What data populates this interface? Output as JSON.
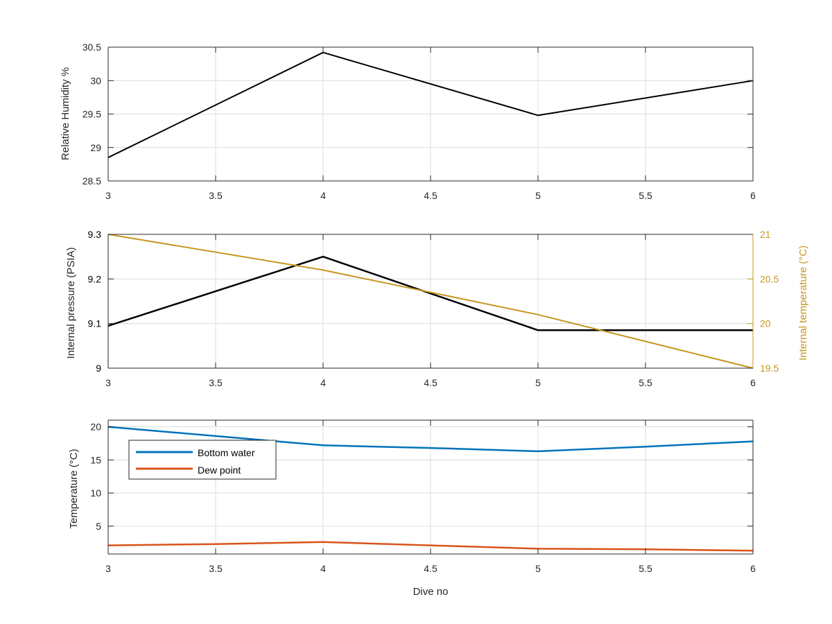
{
  "colors": {
    "axis": "#262626",
    "grid": "#dcdcdc",
    "black_series": "#000000",
    "orange_axis": "#C8961E",
    "blue_series": "#0072BD",
    "red_series": "#D95319"
  },
  "chart_data": [
    {
      "type": "line",
      "xlabel": "",
      "ylabel": "Relative Humidity %",
      "xlim": [
        3,
        6
      ],
      "ylim": [
        28.5,
        30.5
      ],
      "grid": true,
      "xticks": [
        "3",
        "3.5",
        "4",
        "4.5",
        "5",
        "5.5",
        "6"
      ],
      "yticks": [
        "28.5",
        "29",
        "29.5",
        "30",
        "30.5"
      ],
      "series": [
        {
          "x": [
            3,
            4,
            5,
            6
          ],
          "y": [
            28.85,
            30.42,
            29.48,
            30.0
          ]
        }
      ]
    },
    {
      "type": "line",
      "xlabel": "",
      "ylabel": "Internal pressure (PSIA)",
      "ylabel_right": "Internal temperature (°C)",
      "xlim": [
        3,
        6
      ],
      "ylim": [
        9,
        9.3
      ],
      "ylim_right": [
        19.5,
        21
      ],
      "grid": true,
      "xticks": [
        "3",
        "3.5",
        "4",
        "4.5",
        "5",
        "5.5",
        "6"
      ],
      "yticks": [
        "9",
        "9.1",
        "9.2",
        "9.3"
      ],
      "yticks_right": [
        "19.5",
        "20",
        "20.5",
        "21"
      ],
      "series": [
        {
          "axis": "left",
          "x": [
            3,
            4,
            5,
            6
          ],
          "y": [
            9.095,
            9.25,
            9.085,
            9.085
          ]
        },
        {
          "axis": "right",
          "x": [
            3,
            4,
            5,
            6
          ],
          "y": [
            21.0,
            20.6,
            20.1,
            19.5
          ]
        }
      ]
    },
    {
      "type": "line",
      "xlabel": "Dive no",
      "ylabel": "Temperature (°C)",
      "xlim": [
        3,
        6
      ],
      "ylim": [
        0.8,
        21
      ],
      "grid": true,
      "xticks": [
        "3",
        "3.5",
        "4",
        "4.5",
        "5",
        "5.5",
        "6"
      ],
      "yticks": [
        "5",
        "10",
        "15",
        "20"
      ],
      "legend_position": "top-left",
      "series": [
        {
          "name": "Bottom water",
          "x": [
            3,
            3.5,
            4,
            4.5,
            5,
            5.5,
            6
          ],
          "y": [
            20.0,
            18.6,
            17.2,
            16.8,
            16.3,
            17.0,
            17.8
          ]
        },
        {
          "name": "Dew point",
          "x": [
            3,
            3.5,
            4,
            4.5,
            5,
            5.5,
            6
          ],
          "y": [
            2.1,
            2.3,
            2.6,
            2.1,
            1.6,
            1.5,
            1.3
          ]
        }
      ]
    }
  ]
}
